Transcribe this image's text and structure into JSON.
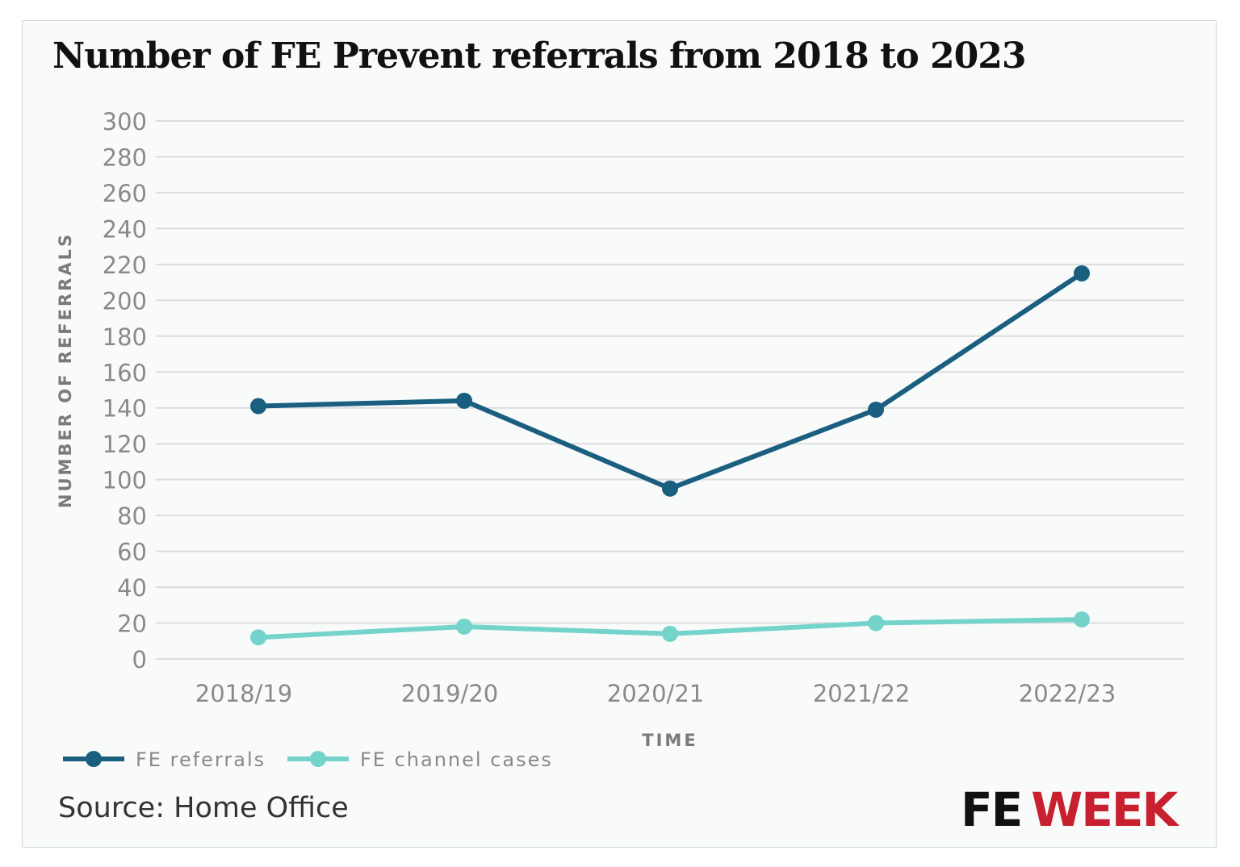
{
  "chart_data": {
    "type": "line",
    "title": "Number of FE Prevent referrals from 2018 to 2023",
    "xlabel": "TIME",
    "ylabel": "NUMBER OF REFERRALS",
    "categories": [
      "2018/19",
      "2019/20",
      "2020/21",
      "2021/22",
      "2022/23"
    ],
    "ylim": [
      0,
      300
    ],
    "yticks": [
      0,
      20,
      40,
      60,
      80,
      100,
      120,
      140,
      160,
      180,
      200,
      220,
      240,
      260,
      280,
      300
    ],
    "grid": true,
    "legend_position": "bottom-left",
    "series": [
      {
        "name": "FE referrals",
        "color": "#1a5e80",
        "values": [
          141,
          144,
          95,
          139,
          215
        ]
      },
      {
        "name": "FE channel cases",
        "color": "#74d3cb",
        "values": [
          12,
          18,
          14,
          20,
          22
        ]
      }
    ]
  },
  "source": "Source: Home Office",
  "logo": {
    "part1": "FE",
    "part2": "WEEK",
    "color1": "#111111",
    "color2": "#c8202e"
  }
}
